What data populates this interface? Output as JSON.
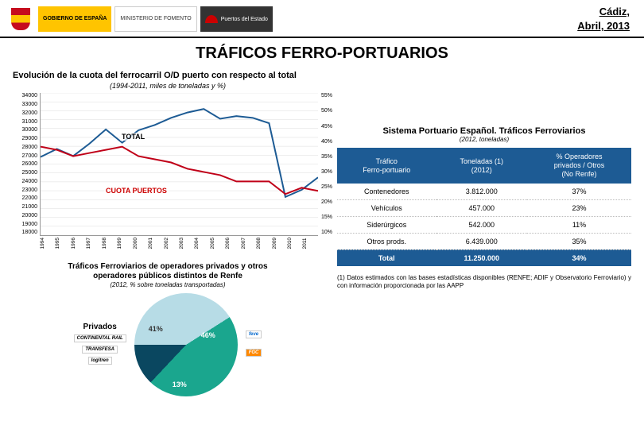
{
  "header": {
    "city": "Cádiz,",
    "date": "Abril, 2013",
    "logos": {
      "gob": "GOBIERNO\nDE ESPAÑA",
      "fom": "MINISTERIO\nDE FOMENTO",
      "pde": "Puertos del Estado"
    }
  },
  "title": "TRÁFICOS FERRO-PORTUARIOS",
  "chart1": {
    "title": "Evolución de la cuota del ferrocarril O/D puerto con respecto al total",
    "subtitle": "(1994-2011, miles de toneladas y %)",
    "y_left_min": 18000,
    "y_left_max": 34000,
    "y_left_step": 1000,
    "y_right_min": 10,
    "y_right_max": 55,
    "y_right_step": 5,
    "years": [
      "1994",
      "1995",
      "1996",
      "1997",
      "1998",
      "1999",
      "2000",
      "2001",
      "2002",
      "2003",
      "2004",
      "2005",
      "2006",
      "2007",
      "2008",
      "2009",
      "2010",
      "2011"
    ],
    "total": [
      26800,
      27700,
      26900,
      28300,
      29900,
      28400,
      29800,
      30400,
      31200,
      31800,
      32200,
      31100,
      31400,
      31200,
      30600,
      22300,
      23100,
      24500
    ],
    "cuota_pct": [
      38,
      37,
      35,
      36,
      37,
      38,
      35,
      34,
      33,
      31,
      30,
      29,
      27,
      27,
      27,
      23,
      25,
      24
    ],
    "color_total": "#1d5b94",
    "color_cuota": "#c00018",
    "grid_color": "#dddddd",
    "label_total": "TOTAL",
    "label_cuota": "CUOTA PUERTOS"
  },
  "section2": {
    "title1": "Tráficos Ferroviarios de operadores privados y otros",
    "title2": "operadores públicos distintos de Renfe",
    "subtitle": "(2012, % sobre toneladas transportadas)",
    "privados_label": "Privados",
    "slices": [
      {
        "label": "41%",
        "value": 41,
        "color": "#b7dce6"
      },
      {
        "label": "46%",
        "value": 46,
        "color": "#1aa68e"
      },
      {
        "label": "13%",
        "value": 13,
        "color": "#0a4760"
      }
    ],
    "op_logos": [
      "CONTINENTAL RAIL",
      "TRANSFESA",
      "logitren"
    ],
    "side_logos": [
      "feve",
      "FGC"
    ]
  },
  "table": {
    "title": "Sistema Portuario Español. Tráficos Ferroviarios",
    "subtitle": "(2012, toneladas)",
    "cols": [
      "Tráfico\nFerro-portuario",
      "Toneladas (1)\n(2012)",
      "% Operadores\nprivados / Otros\n(No Renfe)"
    ],
    "rows": [
      [
        "Contenedores",
        "3.812.000",
        "37%"
      ],
      [
        "Vehículos",
        "457.000",
        "23%"
      ],
      [
        "Siderúrgicos",
        "542.000",
        "11%"
      ],
      [
        "Otros prods.",
        "6.439.000",
        "35%"
      ]
    ],
    "total_row": [
      "Total",
      "11.250.000",
      "34%"
    ],
    "header_bg": "#1d5b94"
  },
  "footnote": "(1) Datos estimados con las bases estadísticas disponibles (RENFE; ADIF y Observatorio Ferroviario) y con información proporcionada por las AAPP"
}
